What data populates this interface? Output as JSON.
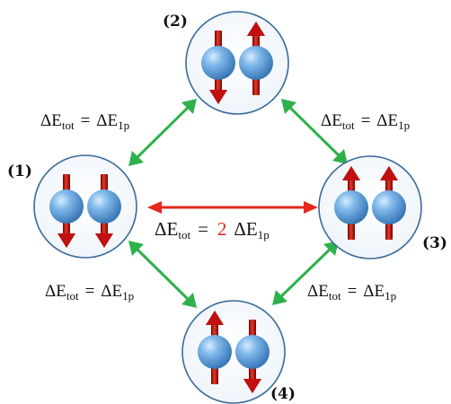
{
  "colors": {
    "pair_arrow": "#2fb04b",
    "direct_arrow": "#e8261d",
    "spin_arrow": "#c01010",
    "sphere": "#5f9fd9",
    "circle_outline": "#3a6a9a"
  },
  "states": [
    {
      "label": "(1)",
      "spins": [
        "down",
        "down"
      ]
    },
    {
      "label": "(2)",
      "spins": [
        "down",
        "up"
      ]
    },
    {
      "label": "(3)",
      "spins": [
        "up",
        "up"
      ]
    },
    {
      "label": "(4)",
      "spins": [
        "up",
        "down"
      ]
    }
  ],
  "energy_symbol": "ΔE",
  "sub_tot": "tot",
  "equals": "=",
  "sub_1p": "1p",
  "factor": "2",
  "transitions": [
    {
      "from": "(1)",
      "to": "(2)",
      "arrow": "double-headed"
    },
    {
      "from": "(2)",
      "to": "(3)",
      "arrow": "double-headed"
    },
    {
      "from": "(1)",
      "to": "(4)",
      "arrow": "double-headed"
    },
    {
      "from": "(4)",
      "to": "(3)",
      "arrow": "double-headed"
    },
    {
      "from": "(1)",
      "to": "(3)",
      "arrow": "double-headed"
    }
  ]
}
